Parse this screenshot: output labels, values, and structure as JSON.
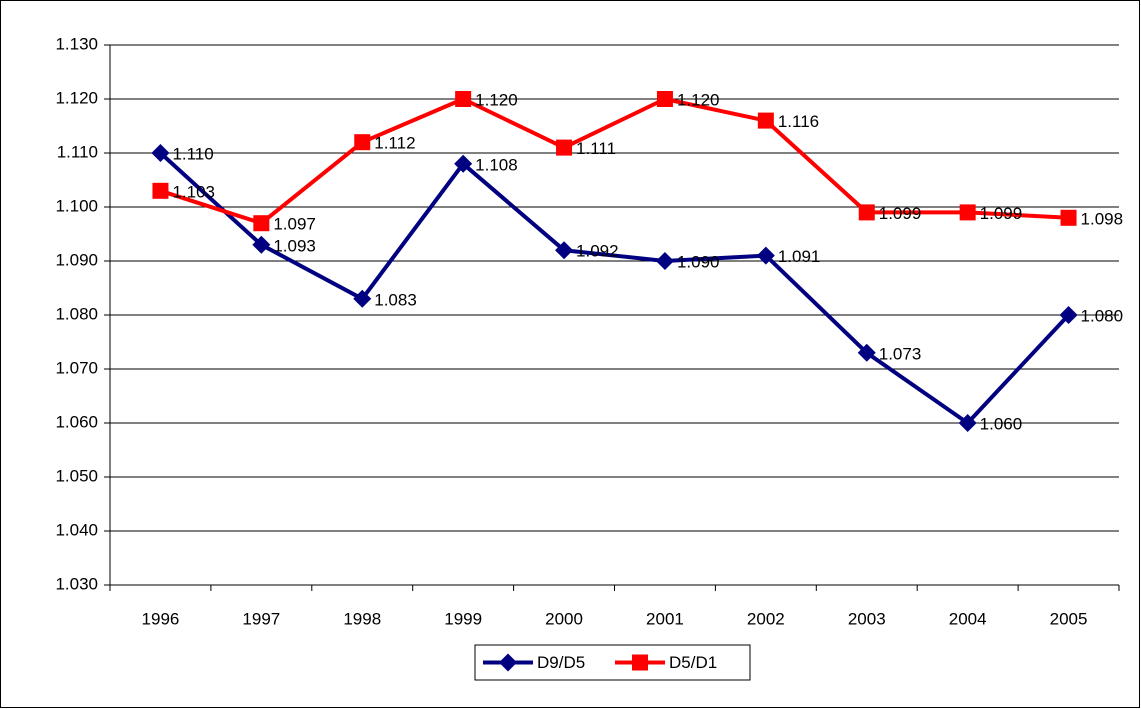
{
  "chart_data": {
    "type": "line",
    "categories": [
      "1996",
      "1997",
      "1998",
      "1999",
      "2000",
      "2001",
      "2002",
      "2003",
      "2004",
      "2005"
    ],
    "series": [
      {
        "name": "D9/D5",
        "color": "#000080",
        "marker": "diamond",
        "values": [
          1.11,
          1.093,
          1.083,
          1.108,
          1.092,
          1.09,
          1.091,
          1.073,
          1.06,
          1.08
        ],
        "value_labels": [
          "1.110",
          "1.093",
          "1.083",
          "1.108",
          "1.092",
          "1.090",
          "1.091",
          "1.073",
          "1.060",
          "1.080"
        ]
      },
      {
        "name": "D5/D1",
        "color": "#ff0000",
        "marker": "square",
        "values": [
          1.103,
          1.097,
          1.112,
          1.12,
          1.111,
          1.12,
          1.116,
          1.099,
          1.099,
          1.098
        ],
        "value_labels": [
          "1.103",
          "1.097",
          "1.112",
          "1.120",
          "1.111",
          "1.120",
          "1.116",
          "1.099",
          "1.099",
          "1.098"
        ]
      }
    ],
    "ylim": [
      1.03,
      1.13
    ],
    "yticks": [
      {
        "value": 1.03,
        "label": "1.030"
      },
      {
        "value": 1.04,
        "label": "1.040"
      },
      {
        "value": 1.05,
        "label": "1.050"
      },
      {
        "value": 1.06,
        "label": "1.060"
      },
      {
        "value": 1.07,
        "label": "1.070"
      },
      {
        "value": 1.08,
        "label": "1.080"
      },
      {
        "value": 1.09,
        "label": "1.090"
      },
      {
        "value": 1.1,
        "label": "1.100"
      },
      {
        "value": 1.11,
        "label": "1.110"
      },
      {
        "value": 1.12,
        "label": "1.120"
      },
      {
        "value": 1.13,
        "label": "1.130"
      }
    ],
    "grid": true,
    "legend": "bottom"
  }
}
